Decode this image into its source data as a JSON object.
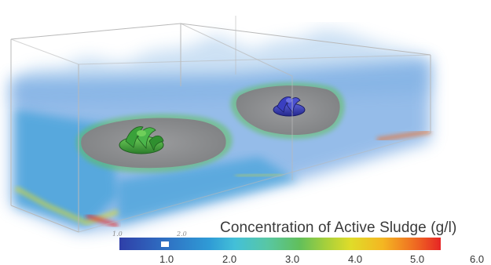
{
  "legend": {
    "title": "Concentration of Active Sludge (g/l)",
    "ticks": [
      "1.0",
      "2.0",
      "3.0",
      "4.0",
      "5.0",
      "6.0"
    ],
    "scale_min": 0.0,
    "scale_max": 6.0,
    "ghost_labels": [
      "1.0",
      "2.0"
    ]
  },
  "colors": {
    "low": "#2f3fa8",
    "mid_low": "#2f9bd6",
    "mid": "#61bf5b",
    "mid_high": "#e0dc29",
    "high": "#e62525",
    "floor": "#8f9092",
    "impeller_left": "#3aa13a",
    "impeller_right": "#2f34a8"
  },
  "scene": {
    "tanks": 2,
    "impellers": [
      "green-impeller",
      "blue-impeller"
    ]
  }
}
